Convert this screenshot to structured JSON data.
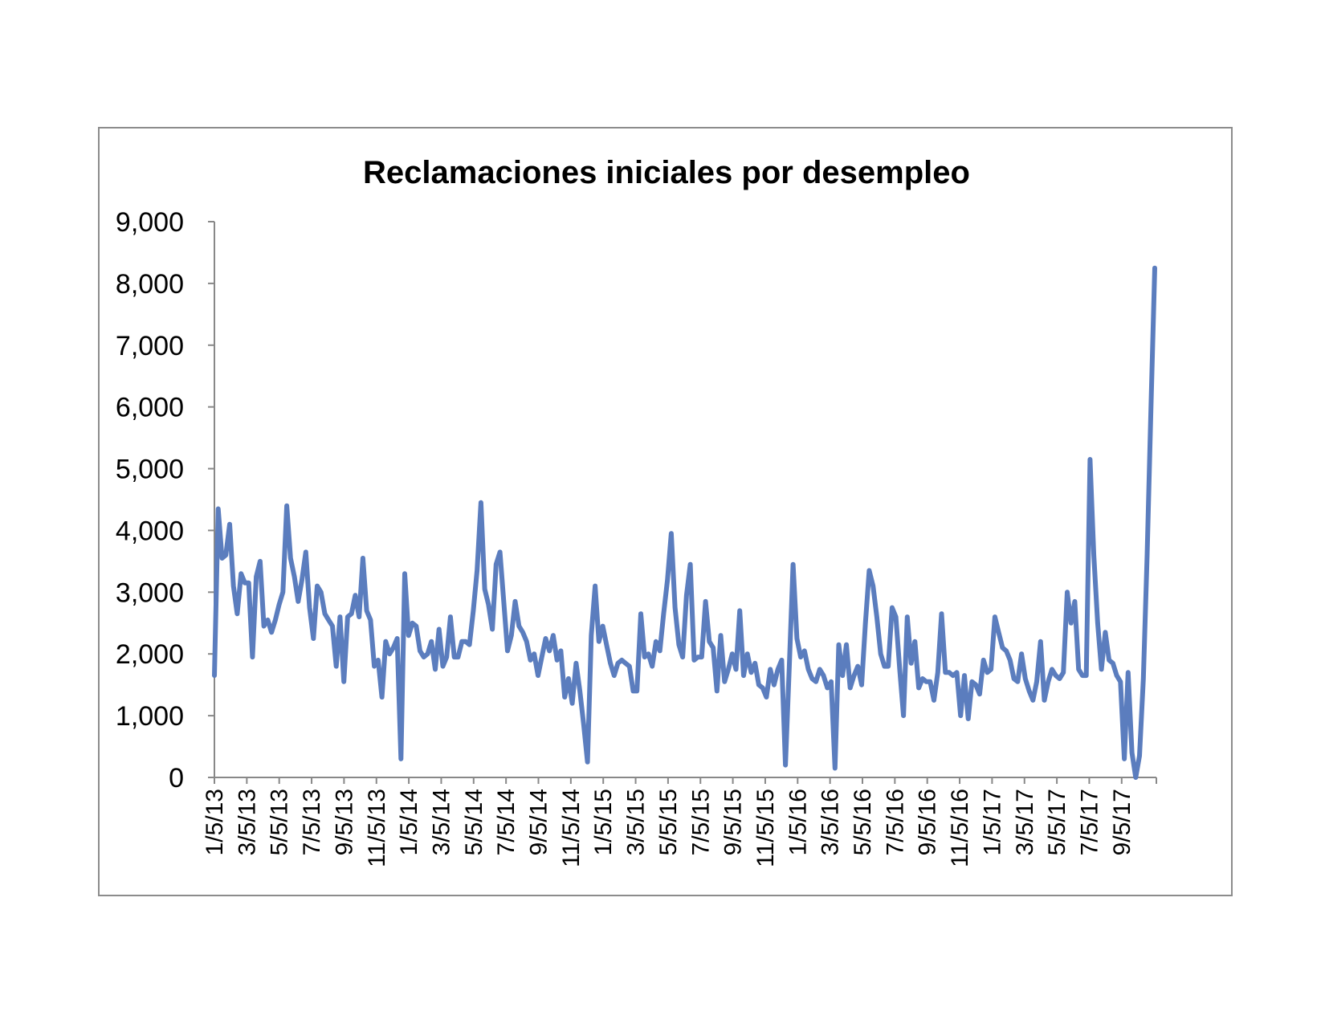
{
  "chart_data": {
    "type": "line",
    "title": "Reclamaciones iniciales por desempleo",
    "xlabel": "",
    "ylabel": "",
    "ylim": [
      0,
      9000
    ],
    "yticks": [
      "0",
      "1,000",
      "2,000",
      "3,000",
      "4,000",
      "5,000",
      "6,000",
      "7,000",
      "8,000",
      "9,000"
    ],
    "xtick_labels": [
      "1/5/13",
      "3/5/13",
      "5/5/13",
      "7/5/13",
      "9/5/13",
      "11/5/13",
      "1/5/14",
      "3/5/14",
      "5/5/14",
      "7/5/14",
      "9/5/14",
      "11/5/14",
      "1/5/15",
      "3/5/15",
      "5/5/15",
      "7/5/15",
      "9/5/15",
      "11/5/15",
      "1/5/16",
      "3/5/16",
      "5/5/16",
      "7/5/16",
      "9/5/16",
      "11/5/16",
      "1/5/17",
      "3/5/17",
      "5/5/17",
      "7/5/17",
      "9/5/17"
    ],
    "grid": false,
    "legend": "none",
    "series_color": "#5B7DBE",
    "series": [
      {
        "values": [
          1650,
          4350,
          3550,
          3600,
          4100,
          3100,
          2650,
          3300,
          3150,
          3150,
          1950,
          3250,
          3500,
          2450,
          2550,
          2350,
          2550,
          2800,
          3000,
          4400,
          3550,
          3250,
          2850,
          3200,
          3650,
          2750,
          2250,
          3100,
          3000,
          2650,
          2550,
          2450,
          1800,
          2600,
          1550,
          2600,
          2650,
          2950,
          2600,
          3550,
          2700,
          2550,
          1800,
          1900,
          1300,
          2200,
          2000,
          2100,
          2250,
          300,
          3300,
          2300,
          2500,
          2450,
          2050,
          1950,
          2000,
          2200,
          1750,
          2400,
          1800,
          1950,
          2600,
          1950,
          1950,
          2200,
          2200,
          2150,
          2700,
          3350,
          4450,
          3050,
          2800,
          2400,
          3450,
          3650,
          2850,
          2050,
          2300,
          2850,
          2450,
          2350,
          2200,
          1900,
          2000,
          1650,
          1950,
          2250,
          2050,
          2300,
          1900,
          2050,
          1300,
          1600,
          1200,
          1850,
          1400,
          850,
          250,
          2300,
          3100,
          2200,
          2450,
          2150,
          1850,
          1650,
          1850,
          1900,
          1850,
          1800,
          1400,
          1400,
          2650,
          1950,
          2000,
          1800,
          2200,
          2050,
          2650,
          3200,
          3950,
          2750,
          2150,
          1950,
          2950,
          3450,
          1900,
          1950,
          1950,
          2850,
          2200,
          2100,
          1400,
          2300,
          1550,
          1750,
          2000,
          1750,
          2700,
          1650,
          2000,
          1700,
          1850,
          1500,
          1450,
          1300,
          1750,
          1500,
          1750,
          1900,
          200,
          1800,
          3450,
          2250,
          1950,
          2050,
          1750,
          1600,
          1550,
          1750,
          1650,
          1450,
          1550,
          150,
          2150,
          1650,
          2150,
          1450,
          1650,
          1800,
          1500,
          2500,
          3350,
          3100,
          2600,
          2000,
          1800,
          1800,
          2750,
          2600,
          1750,
          1000,
          2600,
          1850,
          2200,
          1450,
          1600,
          1550,
          1550,
          1250,
          1700,
          2650,
          1700,
          1700,
          1650,
          1700,
          1000,
          1650,
          950,
          1550,
          1500,
          1350,
          1900,
          1700,
          1750,
          2600,
          2350,
          2100,
          2050,
          1900,
          1600,
          1550,
          2000,
          1600,
          1400,
          1250,
          1550,
          2200,
          1250,
          1550,
          1750,
          1650,
          1600,
          1700,
          3000,
          2500,
          2850,
          1750,
          1650,
          1650,
          5150,
          3600,
          2500,
          1750,
          2350,
          1900,
          1850,
          1650,
          1550,
          300,
          1700,
          400,
          0,
          350,
          1600,
          3600,
          6000,
          8250
        ]
      }
    ]
  }
}
